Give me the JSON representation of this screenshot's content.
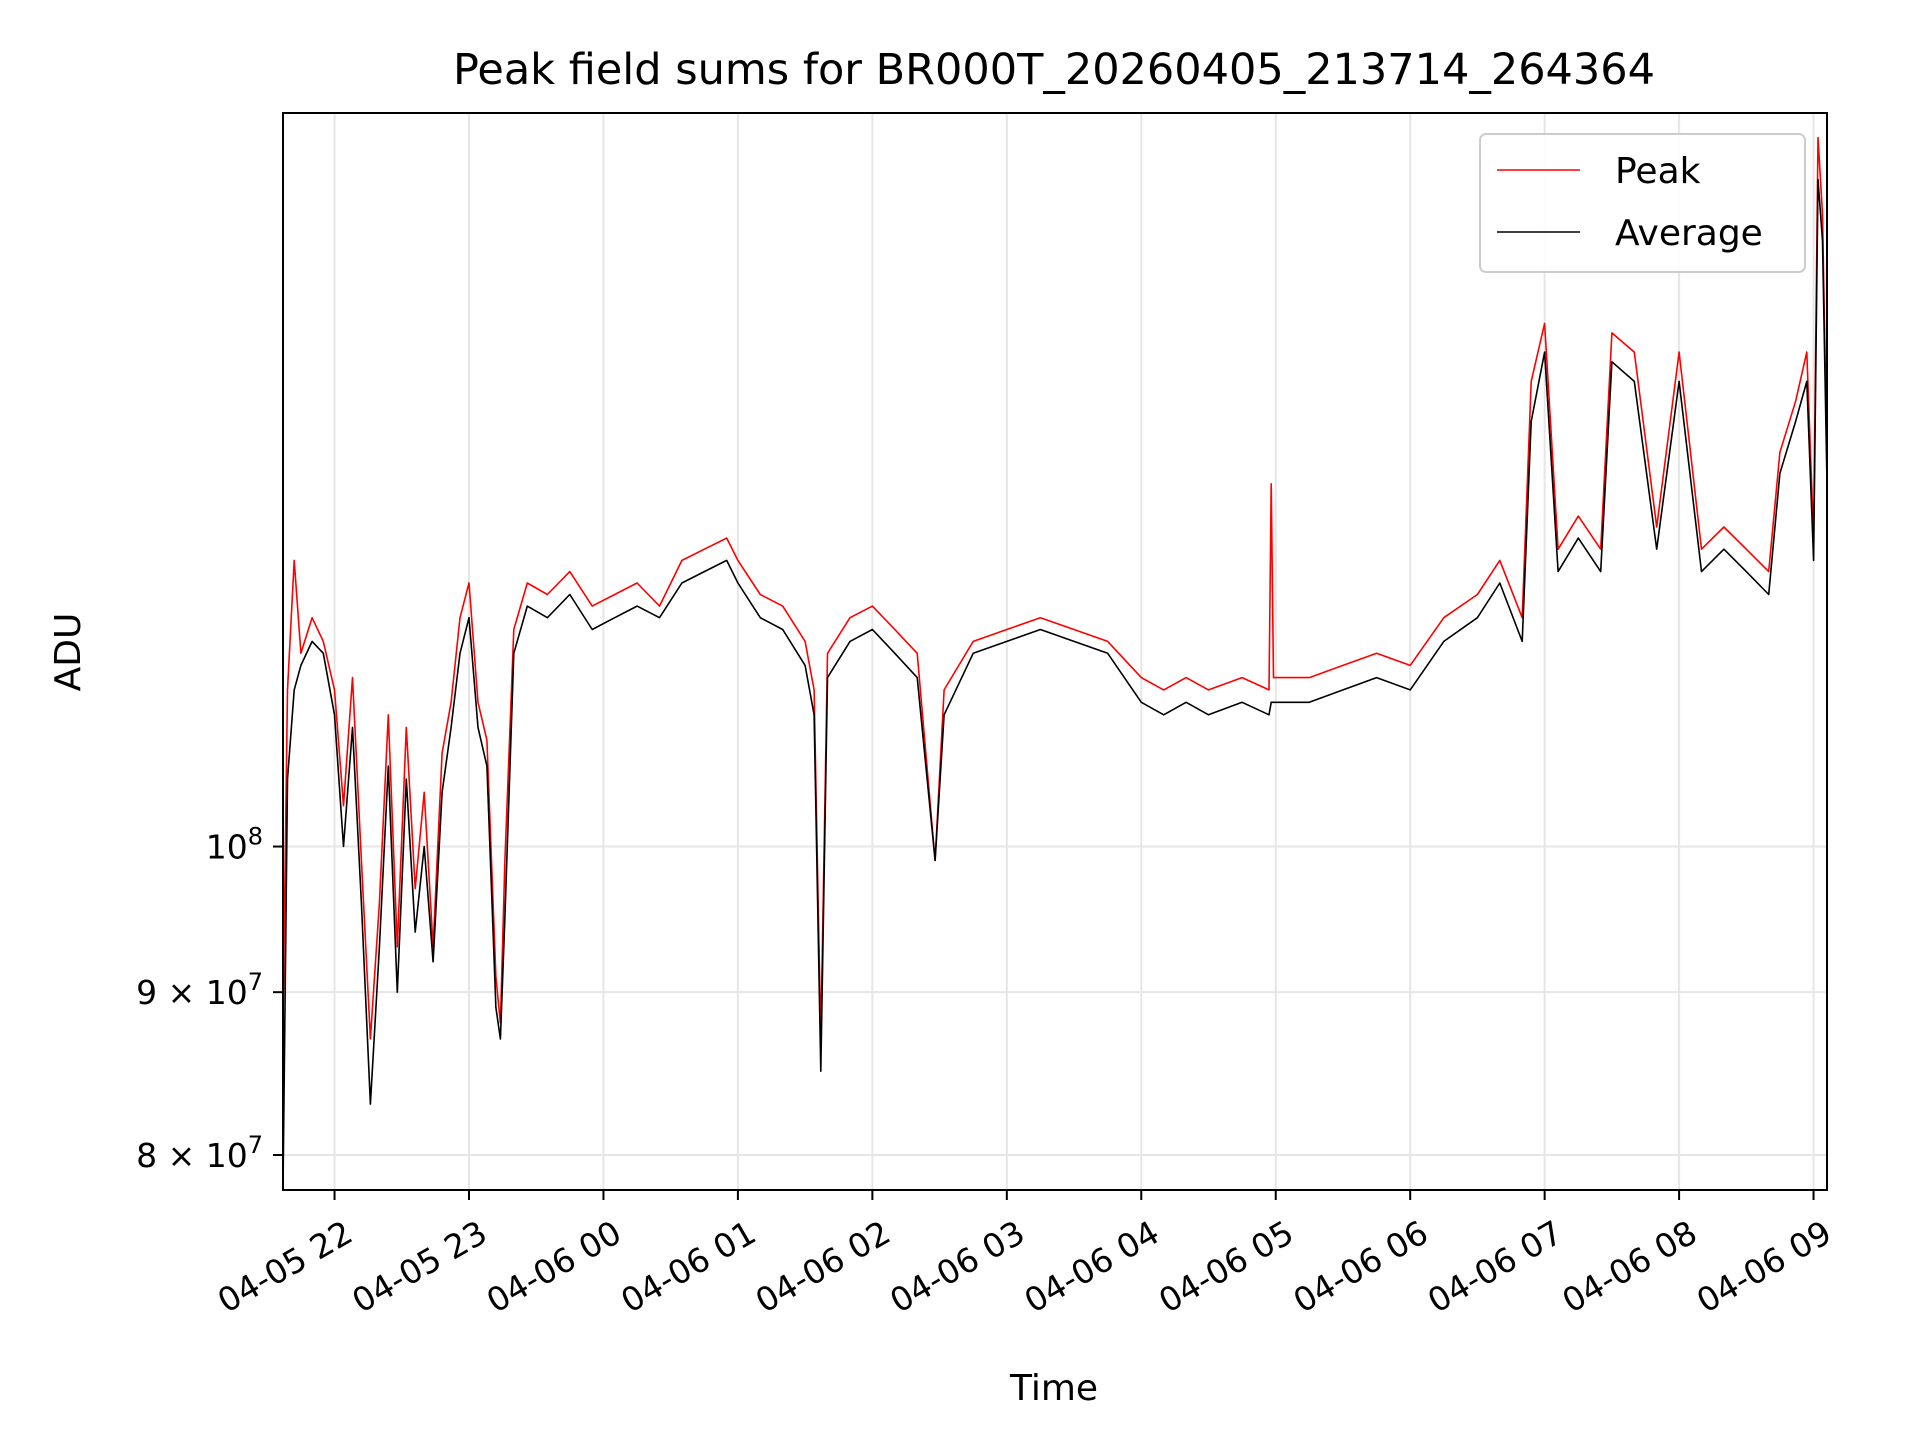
{
  "chart_data": {
    "type": "line",
    "title": "Peak field sums for BR000T_20260405_213714_264364",
    "xlabel": "Time",
    "ylabel": "ADU",
    "xscale": "time",
    "yscale": "log",
    "xlim": [
      "2026-04-05 21:37",
      "2026-04-06 09:06"
    ],
    "ylim": [
      78000000,
      170000000
    ],
    "grid": true,
    "legend_position": "top-right",
    "x_tick_labels": [
      "04-05 22",
      "04-05 23",
      "04-06 00",
      "04-06 01",
      "04-06 02",
      "04-06 03",
      "04-06 04",
      "04-06 05",
      "04-06 06",
      "04-06 07",
      "04-06 08",
      "04-06 09"
    ],
    "x_ticks": [
      "2026-04-05 22:00",
      "2026-04-05 23:00",
      "2026-04-06 00:00",
      "2026-04-06 01:00",
      "2026-04-06 02:00",
      "2026-04-06 03:00",
      "2026-04-06 04:00",
      "2026-04-06 05:00",
      "2026-04-06 06:00",
      "2026-04-06 07:00",
      "2026-04-06 08:00",
      "2026-04-06 09:00"
    ],
    "y_ticks": [
      {
        "value": 80000000,
        "mantissa": "8",
        "base": "10",
        "exponent": "7"
      },
      {
        "value": 90000000,
        "mantissa": "9",
        "base": "10",
        "exponent": "7"
      },
      {
        "value": 100000000,
        "mantissa": "",
        "base": "10",
        "exponent": "8"
      }
    ],
    "series": [
      {
        "name": "Peak",
        "color": "#ff0000",
        "points": [
          [
            "2026-04-05 21:37",
            88000000
          ],
          [
            "2026-04-05 21:39",
            112000000
          ],
          [
            "2026-04-05 21:42",
            123000000
          ],
          [
            "2026-04-05 21:45",
            115000000
          ],
          [
            "2026-04-05 21:50",
            118000000
          ],
          [
            "2026-04-05 21:55",
            116000000
          ],
          [
            "2026-04-05 22:00",
            112000000
          ],
          [
            "2026-04-05 22:04",
            103000000
          ],
          [
            "2026-04-05 22:08",
            113000000
          ],
          [
            "2026-04-05 22:12",
            99000000
          ],
          [
            "2026-04-05 22:16",
            87000000
          ],
          [
            "2026-04-05 22:20",
            96000000
          ],
          [
            "2026-04-05 22:24",
            110000000
          ],
          [
            "2026-04-05 22:28",
            93000000
          ],
          [
            "2026-04-05 22:32",
            109000000
          ],
          [
            "2026-04-05 22:36",
            97000000
          ],
          [
            "2026-04-05 22:40",
            104000000
          ],
          [
            "2026-04-05 22:44",
            93000000
          ],
          [
            "2026-04-05 22:48",
            107000000
          ],
          [
            "2026-04-05 22:52",
            111000000
          ],
          [
            "2026-04-05 22:56",
            118000000
          ],
          [
            "2026-04-05 23:00",
            121000000
          ],
          [
            "2026-04-05 23:04",
            111000000
          ],
          [
            "2026-04-05 23:08",
            108000000
          ],
          [
            "2026-04-05 23:12",
            91000000
          ],
          [
            "2026-04-05 23:14",
            88000000
          ],
          [
            "2026-04-05 23:16",
            99000000
          ],
          [
            "2026-04-05 23:20",
            117000000
          ],
          [
            "2026-04-05 23:26",
            121000000
          ],
          [
            "2026-04-05 23:35",
            120000000
          ],
          [
            "2026-04-05 23:45",
            122000000
          ],
          [
            "2026-04-05 23:55",
            119000000
          ],
          [
            "2026-04-06 00:05",
            120000000
          ],
          [
            "2026-04-06 00:15",
            121000000
          ],
          [
            "2026-04-06 00:25",
            119000000
          ],
          [
            "2026-04-06 00:35",
            123000000
          ],
          [
            "2026-04-06 00:45",
            124000000
          ],
          [
            "2026-04-06 00:55",
            125000000
          ],
          [
            "2026-04-06 01:00",
            123000000
          ],
          [
            "2026-04-06 01:10",
            120000000
          ],
          [
            "2026-04-06 01:20",
            119000000
          ],
          [
            "2026-04-06 01:30",
            116000000
          ],
          [
            "2026-04-06 01:34",
            112000000
          ],
          [
            "2026-04-06 01:37",
            87000000
          ],
          [
            "2026-04-06 01:40",
            115000000
          ],
          [
            "2026-04-06 01:50",
            118000000
          ],
          [
            "2026-04-06 02:00",
            119000000
          ],
          [
            "2026-04-06 02:10",
            117000000
          ],
          [
            "2026-04-06 02:20",
            115000000
          ],
          [
            "2026-04-06 02:28",
            99000000
          ],
          [
            "2026-04-06 02:32",
            112000000
          ],
          [
            "2026-04-06 02:45",
            116000000
          ],
          [
            "2026-04-06 03:00",
            117000000
          ],
          [
            "2026-04-06 03:15",
            118000000
          ],
          [
            "2026-04-06 03:30",
            117000000
          ],
          [
            "2026-04-06 03:45",
            116000000
          ],
          [
            "2026-04-06 04:00",
            113000000
          ],
          [
            "2026-04-06 04:10",
            112000000
          ],
          [
            "2026-04-06 04:20",
            113000000
          ],
          [
            "2026-04-06 04:30",
            112000000
          ],
          [
            "2026-04-06 04:45",
            113000000
          ],
          [
            "2026-04-06 04:57",
            112000000
          ],
          [
            "2026-04-06 04:58",
            130000000
          ],
          [
            "2026-04-06 04:59",
            113000000
          ],
          [
            "2026-04-06 05:15",
            113000000
          ],
          [
            "2026-04-06 05:30",
            114000000
          ],
          [
            "2026-04-06 05:45",
            115000000
          ],
          [
            "2026-04-06 06:00",
            114000000
          ],
          [
            "2026-04-06 06:15",
            118000000
          ],
          [
            "2026-04-06 06:30",
            120000000
          ],
          [
            "2026-04-06 06:40",
            123000000
          ],
          [
            "2026-04-06 06:50",
            118000000
          ],
          [
            "2026-04-06 06:54",
            140000000
          ],
          [
            "2026-04-06 07:00",
            146000000
          ],
          [
            "2026-04-06 07:06",
            124000000
          ],
          [
            "2026-04-06 07:15",
            127000000
          ],
          [
            "2026-04-06 07:25",
            124000000
          ],
          [
            "2026-04-06 07:30",
            145000000
          ],
          [
            "2026-04-06 07:40",
            143000000
          ],
          [
            "2026-04-06 07:50",
            126000000
          ],
          [
            "2026-04-06 08:00",
            143000000
          ],
          [
            "2026-04-06 08:10",
            124000000
          ],
          [
            "2026-04-06 08:20",
            126000000
          ],
          [
            "2026-04-06 08:30",
            124000000
          ],
          [
            "2026-04-06 08:40",
            122000000
          ],
          [
            "2026-04-06 08:45",
            133000000
          ],
          [
            "2026-04-06 08:52",
            138000000
          ],
          [
            "2026-04-06 08:57",
            143000000
          ],
          [
            "2026-04-06 09:00",
            125000000
          ],
          [
            "2026-04-06 09:02",
            167000000
          ],
          [
            "2026-04-06 09:04",
            158000000
          ],
          [
            "2026-04-06 09:06",
            132000000
          ]
        ]
      },
      {
        "name": "Average",
        "color": "#000000",
        "points": [
          [
            "2026-04-05 21:37",
            78000000
          ],
          [
            "2026-04-05 21:39",
            105000000
          ],
          [
            "2026-04-05 21:42",
            112000000
          ],
          [
            "2026-04-05 21:45",
            114000000
          ],
          [
            "2026-04-05 21:50",
            116000000
          ],
          [
            "2026-04-05 21:55",
            115000000
          ],
          [
            "2026-04-05 22:00",
            110000000
          ],
          [
            "2026-04-05 22:04",
            100000000
          ],
          [
            "2026-04-05 22:08",
            109000000
          ],
          [
            "2026-04-05 22:12",
            96000000
          ],
          [
            "2026-04-05 22:16",
            83000000
          ],
          [
            "2026-04-05 22:20",
            93000000
          ],
          [
            "2026-04-05 22:24",
            106000000
          ],
          [
            "2026-04-05 22:28",
            90000000
          ],
          [
            "2026-04-05 22:32",
            105000000
          ],
          [
            "2026-04-05 22:36",
            94000000
          ],
          [
            "2026-04-05 22:40",
            100000000
          ],
          [
            "2026-04-05 22:44",
            92000000
          ],
          [
            "2026-04-05 22:48",
            104000000
          ],
          [
            "2026-04-05 22:52",
            109000000
          ],
          [
            "2026-04-05 22:56",
            115000000
          ],
          [
            "2026-04-05 23:00",
            118000000
          ],
          [
            "2026-04-05 23:04",
            109000000
          ],
          [
            "2026-04-05 23:08",
            106000000
          ],
          [
            "2026-04-05 23:12",
            89000000
          ],
          [
            "2026-04-05 23:14",
            87000000
          ],
          [
            "2026-04-05 23:16",
            95000000
          ],
          [
            "2026-04-05 23:20",
            115000000
          ],
          [
            "2026-04-05 23:26",
            119000000
          ],
          [
            "2026-04-05 23:35",
            118000000
          ],
          [
            "2026-04-05 23:45",
            120000000
          ],
          [
            "2026-04-05 23:55",
            117000000
          ],
          [
            "2026-04-06 00:05",
            118000000
          ],
          [
            "2026-04-06 00:15",
            119000000
          ],
          [
            "2026-04-06 00:25",
            118000000
          ],
          [
            "2026-04-06 00:35",
            121000000
          ],
          [
            "2026-04-06 00:45",
            122000000
          ],
          [
            "2026-04-06 00:55",
            123000000
          ],
          [
            "2026-04-06 01:00",
            121000000
          ],
          [
            "2026-04-06 01:10",
            118000000
          ],
          [
            "2026-04-06 01:20",
            117000000
          ],
          [
            "2026-04-06 01:30",
            114000000
          ],
          [
            "2026-04-06 01:34",
            110000000
          ],
          [
            "2026-04-06 01:37",
            85000000
          ],
          [
            "2026-04-06 01:40",
            113000000
          ],
          [
            "2026-04-06 01:50",
            116000000
          ],
          [
            "2026-04-06 02:00",
            117000000
          ],
          [
            "2026-04-06 02:10",
            115000000
          ],
          [
            "2026-04-06 02:20",
            113000000
          ],
          [
            "2026-04-06 02:28",
            99000000
          ],
          [
            "2026-04-06 02:32",
            110000000
          ],
          [
            "2026-04-06 02:45",
            115000000
          ],
          [
            "2026-04-06 03:00",
            116000000
          ],
          [
            "2026-04-06 03:15",
            117000000
          ],
          [
            "2026-04-06 03:30",
            116000000
          ],
          [
            "2026-04-06 03:45",
            115000000
          ],
          [
            "2026-04-06 04:00",
            111000000
          ],
          [
            "2026-04-06 04:10",
            110000000
          ],
          [
            "2026-04-06 04:20",
            111000000
          ],
          [
            "2026-04-06 04:30",
            110000000
          ],
          [
            "2026-04-06 04:45",
            111000000
          ],
          [
            "2026-04-06 04:57",
            110000000
          ],
          [
            "2026-04-06 04:58",
            111000000
          ],
          [
            "2026-04-06 04:59",
            111000000
          ],
          [
            "2026-04-06 05:15",
            111000000
          ],
          [
            "2026-04-06 05:30",
            112000000
          ],
          [
            "2026-04-06 05:45",
            113000000
          ],
          [
            "2026-04-06 06:00",
            112000000
          ],
          [
            "2026-04-06 06:15",
            116000000
          ],
          [
            "2026-04-06 06:30",
            118000000
          ],
          [
            "2026-04-06 06:40",
            121000000
          ],
          [
            "2026-04-06 06:50",
            116000000
          ],
          [
            "2026-04-06 06:54",
            136000000
          ],
          [
            "2026-04-06 07:00",
            143000000
          ],
          [
            "2026-04-06 07:06",
            122000000
          ],
          [
            "2026-04-06 07:15",
            125000000
          ],
          [
            "2026-04-06 07:25",
            122000000
          ],
          [
            "2026-04-06 07:30",
            142000000
          ],
          [
            "2026-04-06 07:40",
            140000000
          ],
          [
            "2026-04-06 07:50",
            124000000
          ],
          [
            "2026-04-06 08:00",
            140000000
          ],
          [
            "2026-04-06 08:10",
            122000000
          ],
          [
            "2026-04-06 08:20",
            124000000
          ],
          [
            "2026-04-06 08:30",
            122000000
          ],
          [
            "2026-04-06 08:40",
            120000000
          ],
          [
            "2026-04-06 08:45",
            131000000
          ],
          [
            "2026-04-06 08:52",
            136000000
          ],
          [
            "2026-04-06 08:57",
            140000000
          ],
          [
            "2026-04-06 09:00",
            123000000
          ],
          [
            "2026-04-06 09:02",
            162000000
          ],
          [
            "2026-04-06 09:04",
            155000000
          ],
          [
            "2026-04-06 09:06",
            130000000
          ]
        ]
      }
    ]
  },
  "colors": {
    "background": "#ffffff",
    "grid": "#e6e6e6",
    "axes": "#000000",
    "legend_border": "#cccccc"
  }
}
